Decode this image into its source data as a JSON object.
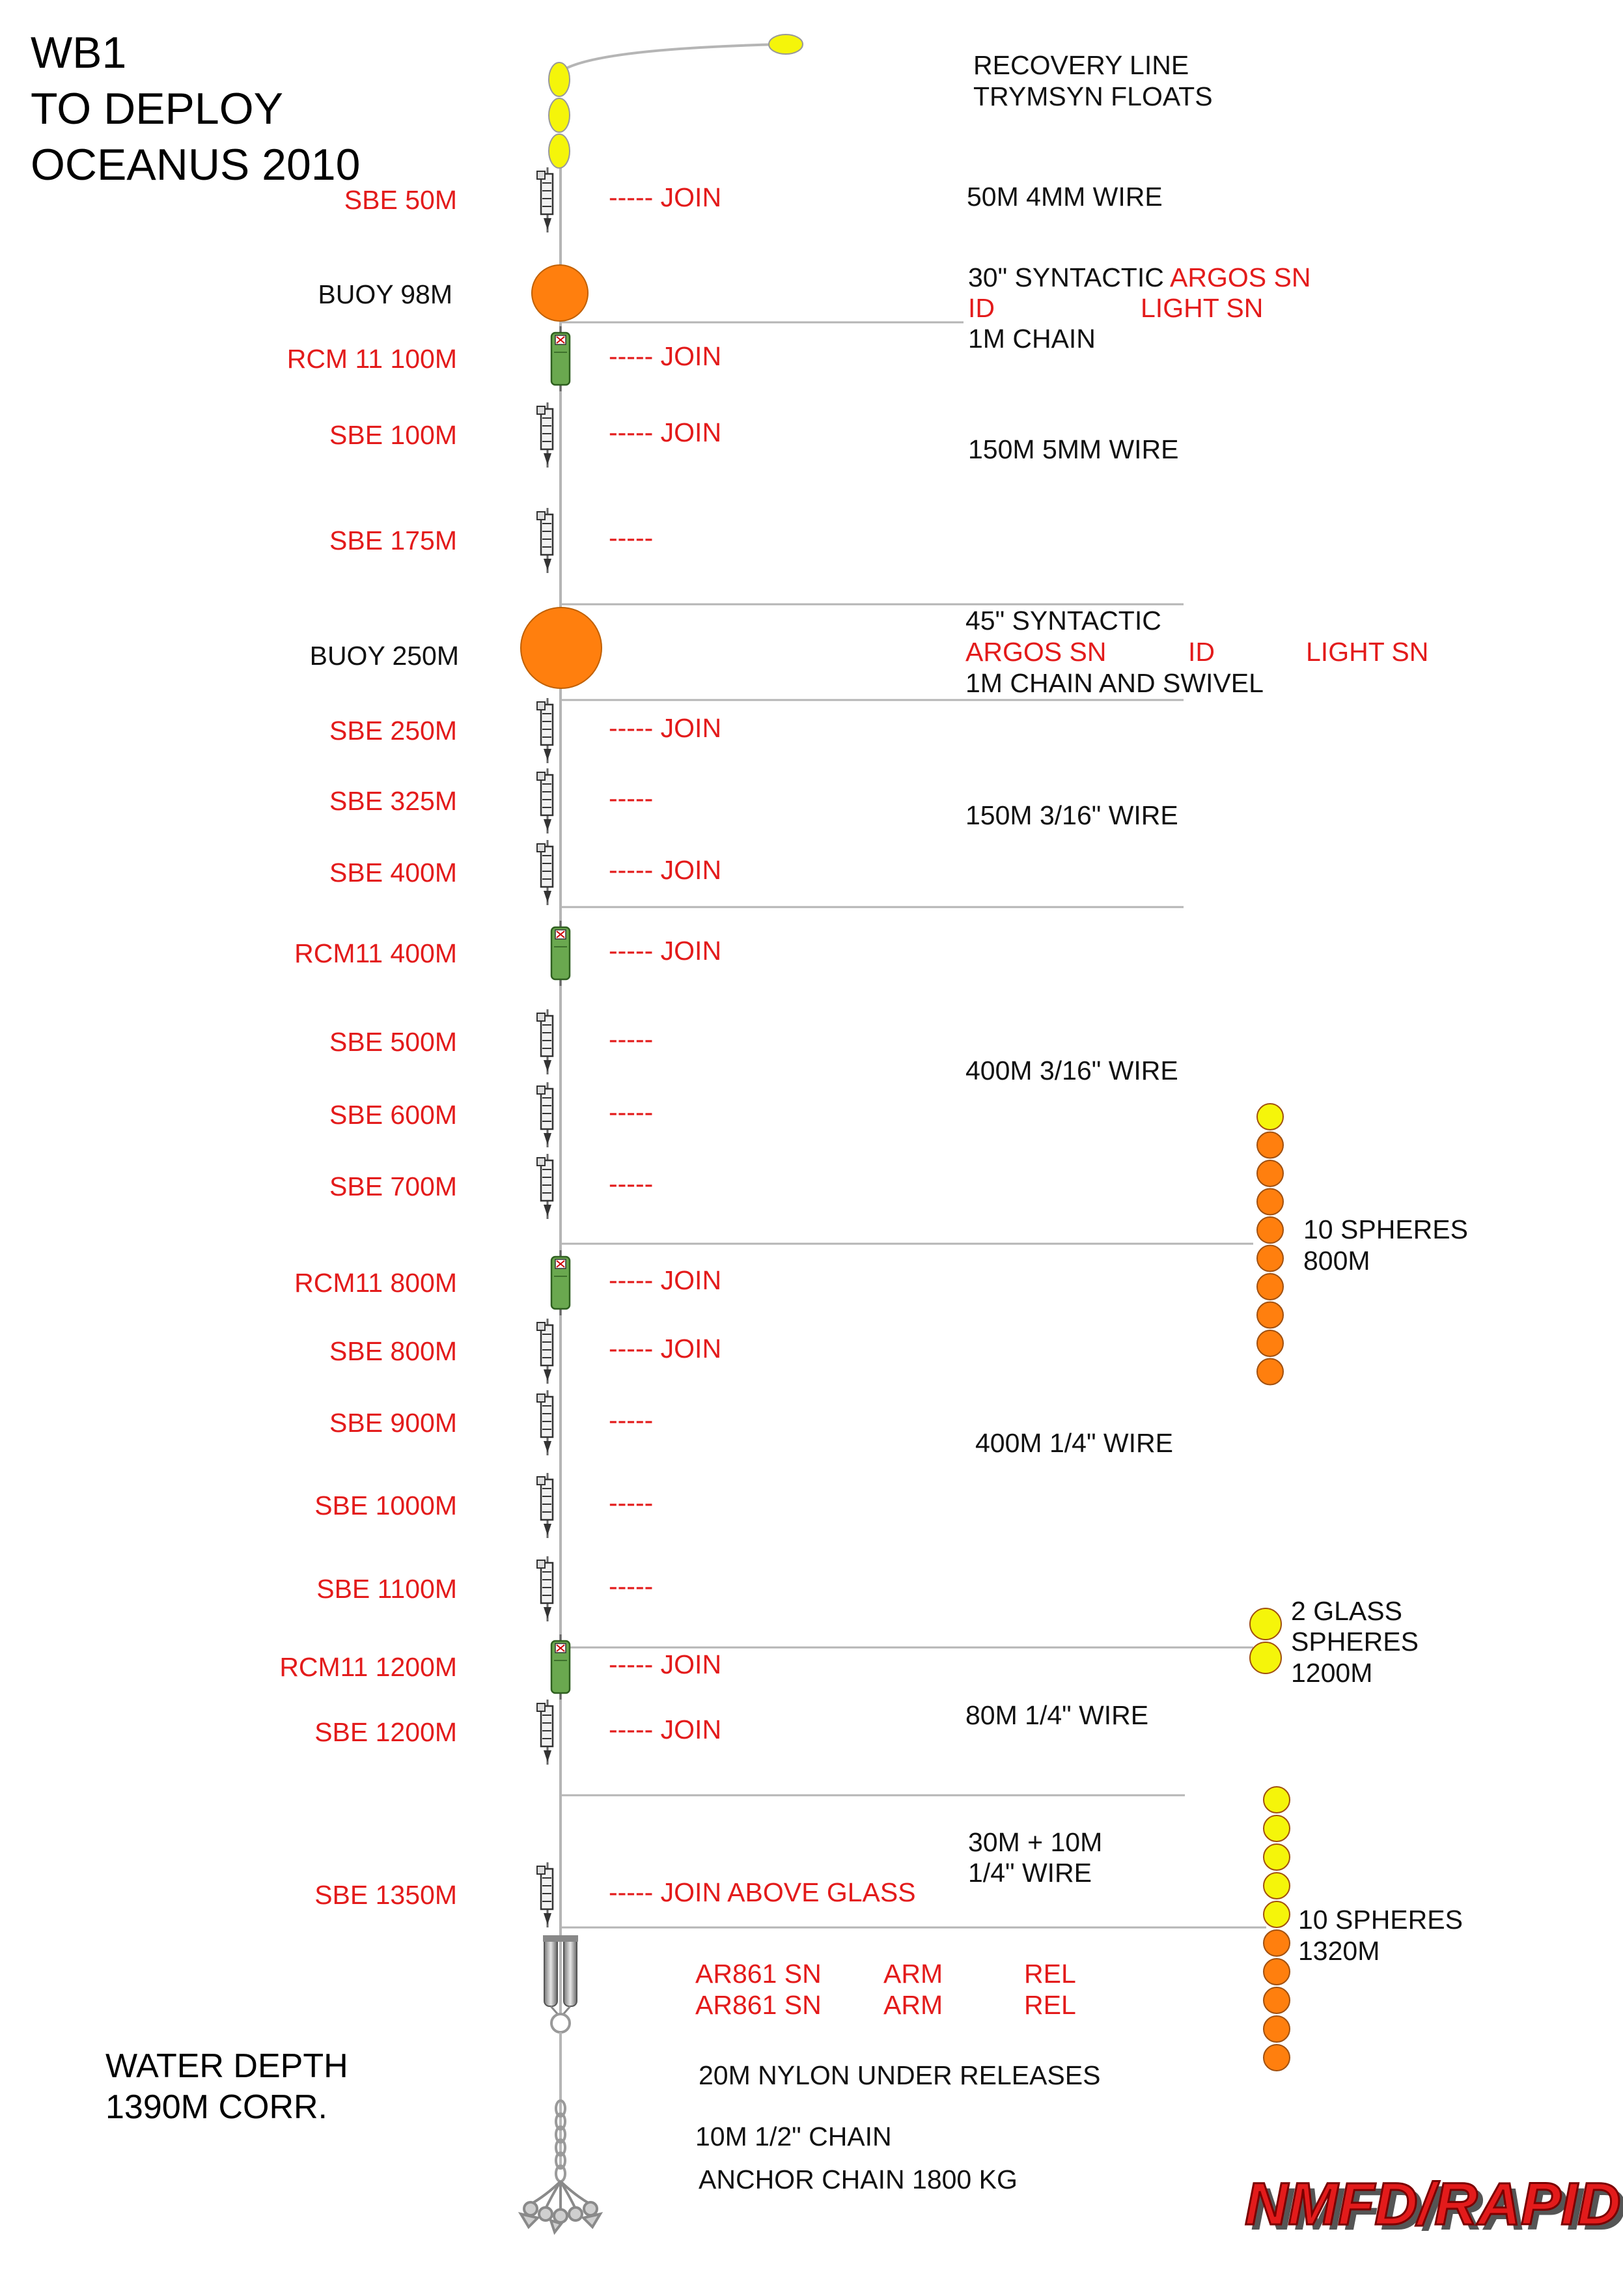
{
  "title": {
    "line1": "WB1",
    "line2": "TO DEPLOY",
    "line3": "OCEANUS 2010"
  },
  "colors": {
    "instrument_label": "#e31b1b",
    "text": "#111111",
    "buoy": "#ff7f0e",
    "float": "#f5f50a",
    "sphere_orange": "#ff7f0e",
    "current_meter": "#6aa84f",
    "brand": "#e31b1b"
  },
  "instruments": [
    {
      "label": "SBE 50M",
      "type": "sbe",
      "note": "----- JOIN"
    },
    {
      "label": "RCM 11 100M",
      "type": "rcm",
      "note": "----- JOIN"
    },
    {
      "label": "SBE 100M",
      "type": "sbe",
      "note": "----- JOIN"
    },
    {
      "label": "SBE 175M",
      "type": "sbe",
      "note": "-----"
    },
    {
      "label": "SBE 250M",
      "type": "sbe",
      "note": "----- JOIN"
    },
    {
      "label": "SBE 325M",
      "type": "sbe",
      "note": "-----"
    },
    {
      "label": "SBE 400M",
      "type": "sbe",
      "note": "----- JOIN"
    },
    {
      "label": "RCM11 400M",
      "type": "rcm",
      "note": "----- JOIN"
    },
    {
      "label": "SBE 500M",
      "type": "sbe",
      "note": "-----"
    },
    {
      "label": "SBE 600M",
      "type": "sbe",
      "note": "-----"
    },
    {
      "label": "SBE 700M",
      "type": "sbe",
      "note": "-----"
    },
    {
      "label": "RCM11 800M",
      "type": "rcm",
      "note": "----- JOIN"
    },
    {
      "label": "SBE 800M",
      "type": "sbe",
      "note": "----- JOIN"
    },
    {
      "label": "SBE 900M",
      "type": "sbe",
      "note": "-----"
    },
    {
      "label": "SBE 1000M",
      "type": "sbe",
      "note": "-----"
    },
    {
      "label": "SBE 1100M",
      "type": "sbe",
      "note": "-----"
    },
    {
      "label": "RCM11 1200M",
      "type": "rcm",
      "note": "----- JOIN"
    },
    {
      "label": "SBE 1200M",
      "type": "sbe",
      "note": "----- JOIN"
    },
    {
      "label": "SBE 1350M",
      "type": "sbe",
      "note": "----- JOIN ABOVE GLASS"
    }
  ],
  "buoys": [
    {
      "label": "BUOY 98M",
      "type_text": "30\" SYNTACTIC",
      "argos": "ARGOS SN",
      "id": "ID",
      "light": "LIGHT SN",
      "chain": "1M CHAIN"
    },
    {
      "label": "BUOY 250M",
      "type_text": "45\" SYNTACTIC",
      "argos": "ARGOS SN",
      "id": "ID",
      "light": "LIGHT SN",
      "chain": "1M CHAIN AND SWIVEL"
    }
  ],
  "recovery": {
    "line1": "RECOVERY LINE",
    "line2": "TRYMSYN FLOATS"
  },
  "wires": [
    {
      "text": "50M 4MM WIRE"
    },
    {
      "text": "150M 5MM WIRE"
    },
    {
      "text": "150M 3/16\" WIRE"
    },
    {
      "text": "400M 3/16\" WIRE"
    },
    {
      "text": "400M 1/4\" WIRE"
    },
    {
      "text": "80M 1/4\" WIRE"
    },
    {
      "line1": "30M + 10M",
      "line2": "1/4\" WIRE"
    }
  ],
  "sphere_groups": [
    {
      "line1": "10 SPHERES",
      "line2": "800M"
    },
    {
      "line1": "2 GLASS",
      "line2": "SPHERES",
      "line3": "1200M"
    },
    {
      "line1": "10 SPHERES",
      "line2": "1320M"
    }
  ],
  "releases": [
    {
      "sn": "AR861 SN",
      "arm": "ARM",
      "rel": "REL"
    },
    {
      "sn": "AR861 SN",
      "arm": "ARM",
      "rel": "REL"
    }
  ],
  "bottom": {
    "nylon": "20M NYLON UNDER RELEASES",
    "chain": "10M 1/2\" CHAIN",
    "anchor": "ANCHOR CHAIN 1800 KG"
  },
  "water_depth": {
    "line1": "WATER DEPTH",
    "line2": "1390M CORR."
  },
  "brand": "NMFD/RAPID"
}
